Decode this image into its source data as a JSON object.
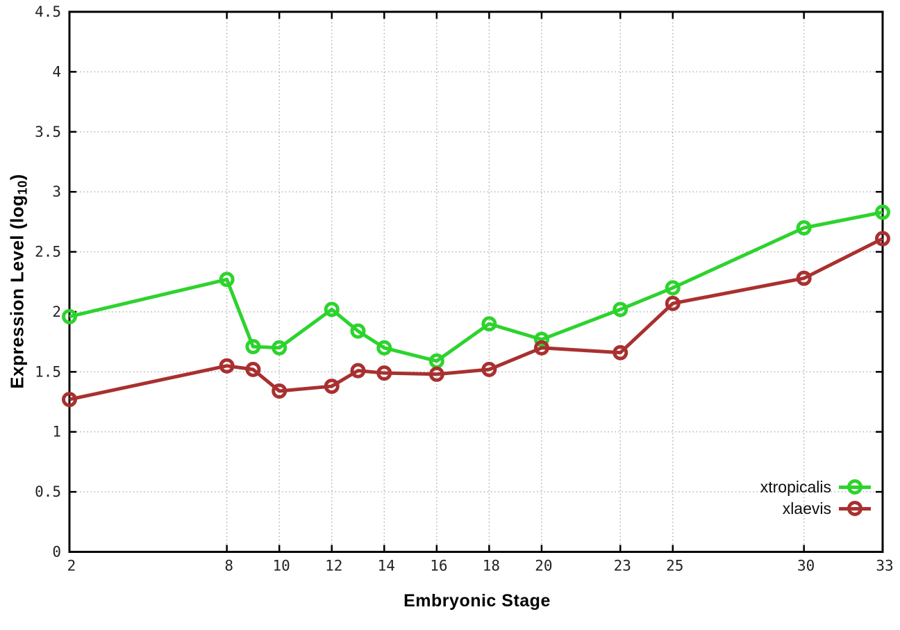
{
  "chart_data": {
    "type": "line",
    "title": "",
    "xlabel": "Embryonic Stage",
    "ylabel": {
      "prefix": "Expression Level (log",
      "sub": "10",
      "suffix": ")"
    },
    "ylabel_text": "Expression Level (log10)",
    "x": [
      2,
      8,
      9,
      10,
      12,
      13,
      14,
      16,
      18,
      20,
      23,
      25,
      30,
      33
    ],
    "series": [
      {
        "name": "xtropicalis",
        "color": "#2dd32d",
        "values": [
          1.96,
          2.27,
          1.71,
          1.7,
          2.02,
          1.84,
          1.7,
          1.59,
          1.9,
          1.77,
          2.02,
          2.2,
          2.7,
          2.83
        ]
      },
      {
        "name": "xlaevis",
        "color": "#a93030",
        "values": [
          1.27,
          1.55,
          1.52,
          1.34,
          1.38,
          1.51,
          1.49,
          1.48,
          1.52,
          1.7,
          1.66,
          2.07,
          2.28,
          2.61
        ]
      }
    ],
    "xlim": [
      2,
      33
    ],
    "ylim": [
      0,
      4.5
    ],
    "xticks": [
      2,
      8,
      10,
      12,
      14,
      16,
      18,
      20,
      23,
      25,
      30,
      33
    ],
    "xtick_labels": [
      "2",
      "8",
      "10",
      "12",
      "14",
      "16",
      "18",
      "20",
      "23",
      "25",
      "30",
      "33"
    ],
    "yticks": [
      0,
      0.5,
      1,
      1.5,
      2,
      2.5,
      3,
      3.5,
      4,
      4.5
    ],
    "ytick_labels": [
      "0",
      "0.5",
      "1",
      "1.5",
      "2",
      "2.5",
      "3",
      "3.5",
      "4",
      "4.5"
    ],
    "grid": true,
    "grid_style": "dotted",
    "legend_position": "inside-bottom-right",
    "marker": "open-circle",
    "colors": {
      "background": "#ffffff",
      "axis": "#000000",
      "grid": "#aaaaaa",
      "tick_label": "#222222"
    }
  }
}
